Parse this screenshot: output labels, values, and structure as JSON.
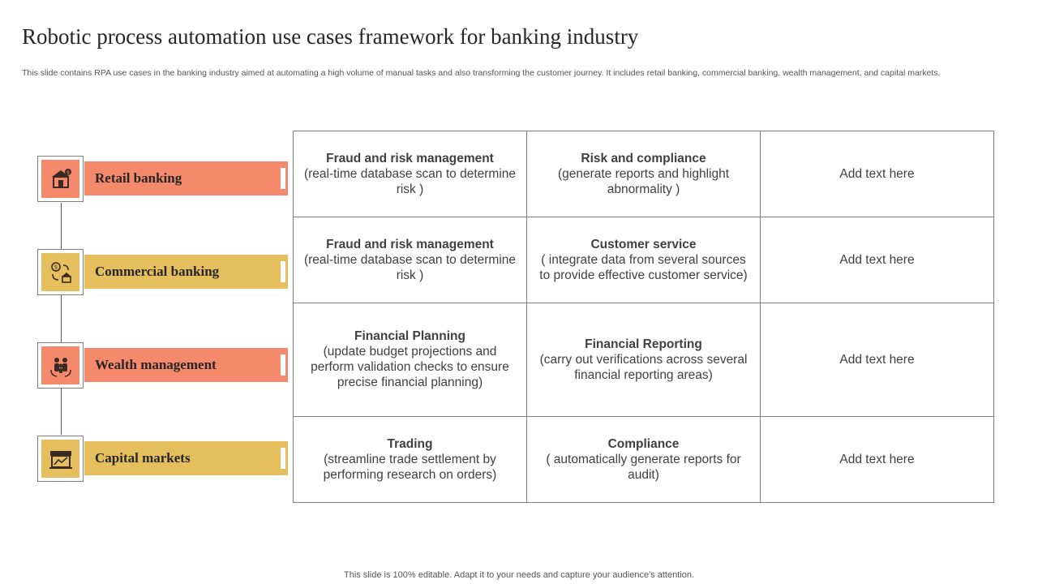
{
  "title": "Robotic process automation use cases framework for banking industry",
  "subtitle": "This slide contains RPA use cases in the banking industry aimed at automating a high volume of manual tasks and also transforming the customer journey. It includes retail banking, commercial banking, wealth management, and capital markets.",
  "colors": {
    "orange": "#f4896b",
    "yellow": "#e5bf5d"
  },
  "categories": [
    {
      "label": "Retail banking",
      "icon": "bank-building-icon",
      "color": "orange"
    },
    {
      "label": "Commercial banking",
      "icon": "money-exchange-icon",
      "color": "yellow"
    },
    {
      "label": "Wealth management",
      "icon": "family-people-icon",
      "color": "orange"
    },
    {
      "label": "Capital markets",
      "icon": "storefront-icon",
      "color": "yellow"
    }
  ],
  "rows": [
    [
      {
        "title": "Fraud and risk management",
        "desc": "(real-time database scan to determine risk )"
      },
      {
        "title": "Risk and compliance",
        "desc": "(generate reports and highlight abnormality )"
      },
      {
        "title": "",
        "desc": "Add text here"
      }
    ],
    [
      {
        "title": "Fraud and risk management",
        "desc": "(real-time database scan to determine risk )"
      },
      {
        "title": "Customer service",
        "desc": "( integrate data from several sources to provide effective customer service)"
      },
      {
        "title": "",
        "desc": "Add text here"
      }
    ],
    [
      {
        "title": "Financial Planning",
        "desc": "(update budget projections and perform validation checks to ensure precise financial planning)"
      },
      {
        "title": "Financial Reporting",
        "desc": "(carry out verifications across several financial reporting areas)"
      },
      {
        "title": "",
        "desc": "Add text here"
      }
    ],
    [
      {
        "title": "Trading",
        "desc": "(streamline trade settlement by performing research on orders)"
      },
      {
        "title": "Compliance",
        "desc": "( automatically generate reports for audit)"
      },
      {
        "title": "",
        "desc": "Add text here"
      }
    ]
  ],
  "footer": "This slide is 100% editable. Adapt it to your needs and capture your audience's attention."
}
